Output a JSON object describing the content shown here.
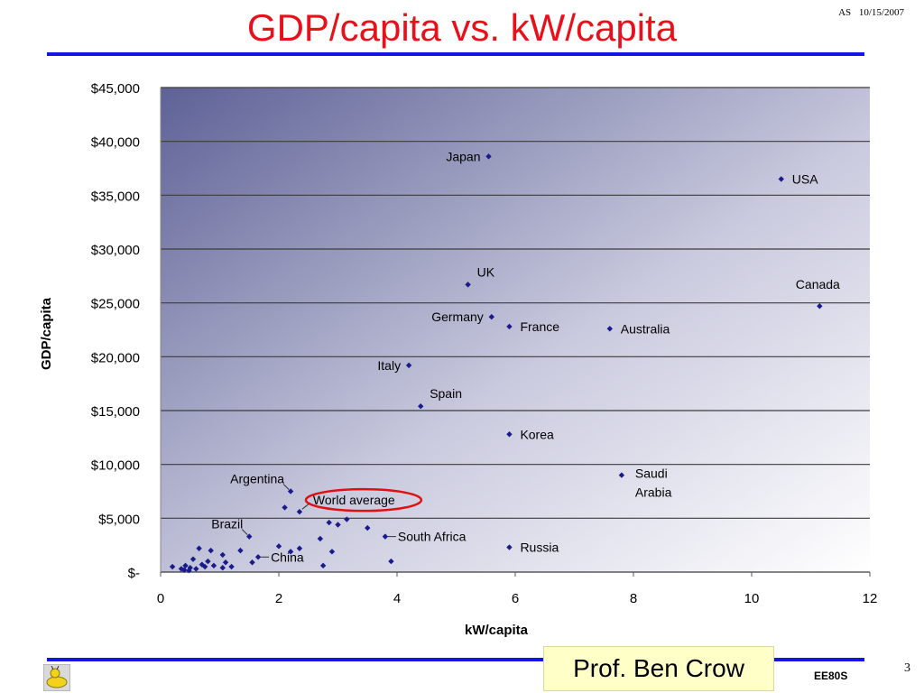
{
  "slide": {
    "title": "GDP/capita vs. kW/capita",
    "author_initials": "AS",
    "date": "10/15/2007",
    "presenter": "Prof. Ben Crow",
    "course": "EE80S",
    "page_number": "3",
    "logo_icon": "slug-mascot-icon"
  },
  "colors": {
    "title": "#e8101a",
    "rule": "#1414e6",
    "marker": "#1a1a8c",
    "highlight": "#e01010",
    "plot_gradient_dark": "#5e6196",
    "plot_gradient_light": "#ffffff"
  },
  "chart_data": {
    "type": "scatter",
    "xlabel": "kW/capita",
    "ylabel": "GDP/capita",
    "xlim": [
      0,
      12
    ],
    "ylim": [
      0,
      45000
    ],
    "x_ticks": [
      0,
      2,
      4,
      6,
      8,
      10,
      12
    ],
    "y_ticks": [
      0,
      5000,
      10000,
      15000,
      20000,
      25000,
      30000,
      35000,
      40000,
      45000
    ],
    "y_tick_labels": [
      "$-",
      "$5,000",
      "$10,000",
      "$15,000",
      "$20,000",
      "$25,000",
      "$30,000",
      "$35,000",
      "$40,000",
      "$45,000"
    ],
    "grid": "horizontal",
    "labeled_points": [
      {
        "label": "Japan",
        "x": 5.55,
        "y": 38600,
        "label_pos": "left"
      },
      {
        "label": "USA",
        "x": 10.5,
        "y": 36500,
        "label_pos": "right"
      },
      {
        "label": "UK",
        "x": 5.2,
        "y": 26700,
        "label_pos": "above-right"
      },
      {
        "label": "Canada",
        "x": 11.15,
        "y": 24700,
        "label_pos": "above"
      },
      {
        "label": "Germany",
        "x": 5.6,
        "y": 23700,
        "label_pos": "left"
      },
      {
        "label": "France",
        "x": 5.9,
        "y": 22800,
        "label_pos": "right"
      },
      {
        "label": "Australia",
        "x": 7.6,
        "y": 22600,
        "label_pos": "right"
      },
      {
        "label": "Italy",
        "x": 4.2,
        "y": 19200,
        "label_pos": "left"
      },
      {
        "label": "Spain",
        "x": 4.4,
        "y": 15400,
        "label_pos": "above-right"
      },
      {
        "label": "Korea",
        "x": 5.9,
        "y": 12800,
        "label_pos": "right"
      },
      {
        "label": "Saudi Arabia",
        "x": 7.8,
        "y": 9000,
        "label_pos": "right"
      },
      {
        "label": "Argentina",
        "x": 2.2,
        "y": 7500,
        "label_pos": "above-left"
      },
      {
        "label": "World average",
        "x": 2.35,
        "y": 5600,
        "label_pos": "right-circled"
      },
      {
        "label": "Brazil",
        "x": 1.5,
        "y": 3300,
        "label_pos": "above-left"
      },
      {
        "label": "South Africa",
        "x": 3.8,
        "y": 3300,
        "label_pos": "right"
      },
      {
        "label": "Russia",
        "x": 5.9,
        "y": 2300,
        "label_pos": "right"
      },
      {
        "label": "China",
        "x": 1.65,
        "y": 1400,
        "label_pos": "right"
      }
    ],
    "unlabeled_points": [
      [
        0.2,
        500
      ],
      [
        0.35,
        300
      ],
      [
        0.4,
        200
      ],
      [
        0.42,
        600
      ],
      [
        0.48,
        150
      ],
      [
        0.5,
        400
      ],
      [
        0.55,
        1200
      ],
      [
        0.6,
        300
      ],
      [
        0.65,
        2200
      ],
      [
        0.7,
        700
      ],
      [
        0.75,
        500
      ],
      [
        0.8,
        1000
      ],
      [
        0.85,
        2000
      ],
      [
        0.9,
        600
      ],
      [
        1.05,
        400
      ],
      [
        1.05,
        1600
      ],
      [
        1.1,
        900
      ],
      [
        1.2,
        500
      ],
      [
        1.35,
        2000
      ],
      [
        1.55,
        900
      ],
      [
        2.0,
        2400
      ],
      [
        2.1,
        6000
      ],
      [
        2.2,
        1900
      ],
      [
        2.35,
        2200
      ],
      [
        2.7,
        3100
      ],
      [
        2.75,
        600
      ],
      [
        2.85,
        4600
      ],
      [
        2.9,
        1900
      ],
      [
        3.0,
        4400
      ],
      [
        3.15,
        4900
      ],
      [
        3.5,
        4100
      ],
      [
        3.9,
        1000
      ]
    ]
  }
}
